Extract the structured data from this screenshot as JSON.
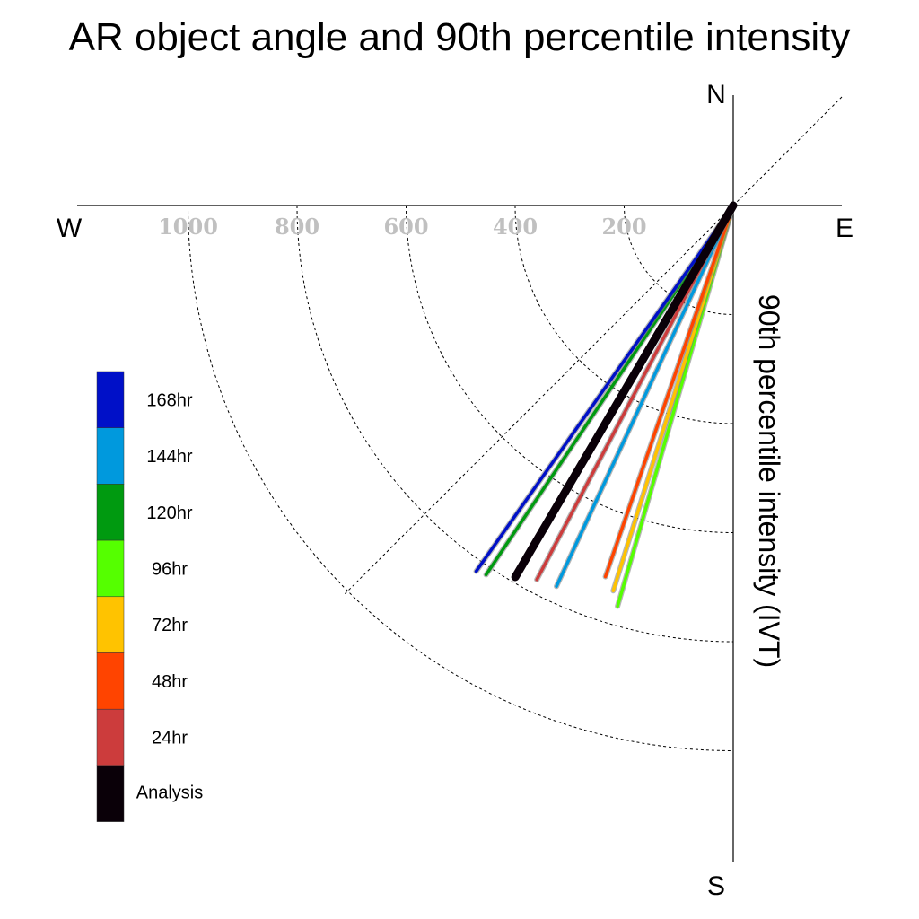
{
  "chart_data": {
    "type": "polar-line",
    "title": "AR object angle and 90th percentile intensity",
    "radial_axis_label": "90th percentile intensity (IVT)",
    "compass": {
      "north": "N",
      "south": "S",
      "east": "E",
      "west": "W"
    },
    "ring_ticks": [
      200,
      400,
      600,
      800,
      1000
    ],
    "radial_max": 1200,
    "series": [
      {
        "name": "168hr",
        "color": "#0010c8",
        "intensity": 820,
        "angle_deg_from_north": 215.1
      },
      {
        "name": "144hr",
        "color": "#0099dd",
        "intensity": 770,
        "angle_deg_from_north": 204.9
      },
      {
        "name": "120hr",
        "color": "#009a10",
        "intensity": 815,
        "angle_deg_from_north": 213.8
      },
      {
        "name": "96hr",
        "color": "#55ff00",
        "intensity": 765,
        "angle_deg_from_north": 196.1
      },
      {
        "name": "72hr",
        "color": "#ffc300",
        "intensity": 740,
        "angle_deg_from_north": 197.3
      },
      {
        "name": "48hr",
        "color": "#ff4400",
        "intensity": 720,
        "angle_deg_from_north": 199.0
      },
      {
        "name": "24hr",
        "color": "#cc3c3c",
        "intensity": 775,
        "angle_deg_from_north": 207.7
      },
      {
        "name": "Analysis",
        "color": "#0a0008",
        "intensity": 790,
        "angle_deg_from_north": 210.4
      }
    ],
    "legend_order": [
      "168hr",
      "144hr",
      "120hr",
      "96hr",
      "72hr",
      "48hr",
      "24hr",
      "Analysis"
    ],
    "grid": "dashed-rings"
  }
}
